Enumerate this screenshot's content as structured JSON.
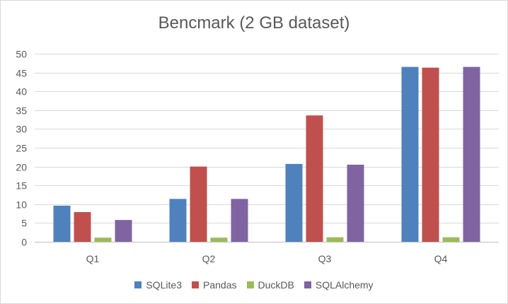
{
  "chart_data": {
    "type": "bar",
    "title": "Bencmark (2 GB dataset)",
    "xlabel": "",
    "ylabel": "",
    "categories": [
      "Q1",
      "Q2",
      "Q3",
      "Q4"
    ],
    "ylim": [
      0,
      50
    ],
    "yticks": [
      0,
      5,
      10,
      15,
      20,
      25,
      30,
      35,
      40,
      45,
      50
    ],
    "grid": true,
    "legend_position": "bottom",
    "series": [
      {
        "name": "SQLite3",
        "color": "#4f81bd",
        "values": [
          9.6,
          11.4,
          20.7,
          46.5
        ]
      },
      {
        "name": "Pandas",
        "color": "#c0504d",
        "values": [
          7.9,
          20.0,
          33.6,
          46.3
        ]
      },
      {
        "name": "DuckDB",
        "color": "#9bbb59",
        "values": [
          1.1,
          1.1,
          1.2,
          1.2
        ]
      },
      {
        "name": "SQLAlchemy",
        "color": "#8064a2",
        "values": [
          5.8,
          11.4,
          20.5,
          46.5
        ]
      }
    ]
  }
}
